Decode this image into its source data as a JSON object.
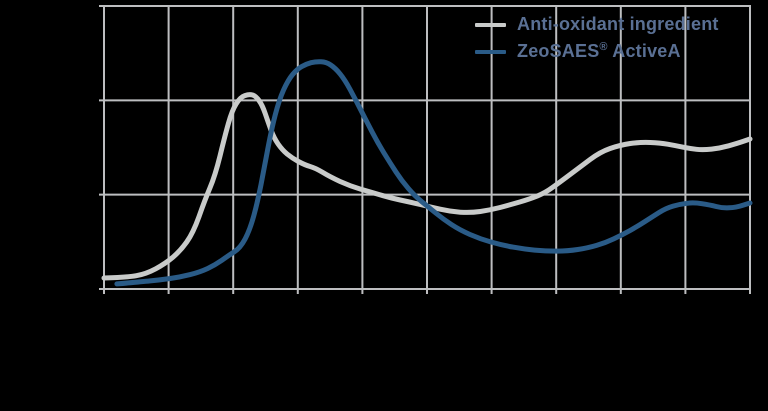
{
  "colors": {
    "background": "#000000",
    "grid": "#bdbec0",
    "series_gray": "#c9cbca",
    "series_blue": "#2a5b87",
    "legend_text": "#5a7094"
  },
  "legend": {
    "items": [
      {
        "label": "Anti-oxidant ingredient",
        "color": "#c9cbca"
      },
      {
        "label": "ZeoSAES® ActiveA",
        "color": "#2a5b87",
        "label_parts": {
          "name": "ZeoSAES",
          "reg": "®",
          "rest": " ActiveA"
        }
      }
    ]
  },
  "chart_data": {
    "type": "line",
    "title": "",
    "xlabel": "",
    "ylabel": "",
    "axes_labeled": false,
    "grid": true,
    "legend_position": "top-right",
    "x_axis": {
      "columns": 10,
      "unit": "grid-columns",
      "range": [
        0,
        10
      ],
      "tick_labels": []
    },
    "y_axis": {
      "rows": 3,
      "unit": "percent-of-plot-height",
      "range": [
        0,
        100
      ],
      "tick_labels": []
    },
    "series": [
      {
        "name": "Anti-oxidant ingredient",
        "color": "#c9cbca",
        "line_width": 5,
        "points": [
          [
            0,
            3.9
          ],
          [
            0.35,
            4.1
          ],
          [
            0.65,
            5.3
          ],
          [
            0.95,
            9.0
          ],
          [
            1.18,
            13.4
          ],
          [
            1.38,
            19.8
          ],
          [
            1.56,
            31.4
          ],
          [
            1.72,
            40.0
          ],
          [
            1.87,
            54.0
          ],
          [
            1.98,
            63.0
          ],
          [
            2.11,
            67.8
          ],
          [
            2.25,
            68.9
          ],
          [
            2.35,
            68.2
          ],
          [
            2.45,
            65.0
          ],
          [
            2.54,
            59.0
          ],
          [
            2.63,
            53.4
          ],
          [
            2.76,
            49.1
          ],
          [
            2.91,
            46.3
          ],
          [
            3.11,
            43.8
          ],
          [
            3.27,
            42.8
          ],
          [
            3.5,
            39.6
          ],
          [
            3.81,
            36.4
          ],
          [
            4.12,
            34.3
          ],
          [
            4.43,
            32.2
          ],
          [
            4.74,
            30.7
          ],
          [
            5.05,
            29.0
          ],
          [
            5.36,
            27.4
          ],
          [
            5.67,
            26.9
          ],
          [
            5.98,
            27.9
          ],
          [
            6.28,
            29.7
          ],
          [
            6.59,
            31.8
          ],
          [
            6.83,
            34.0
          ],
          [
            7.06,
            37.8
          ],
          [
            7.37,
            43.1
          ],
          [
            7.68,
            48.4
          ],
          [
            7.99,
            50.9
          ],
          [
            8.3,
            51.9
          ],
          [
            8.61,
            51.6
          ],
          [
            8.84,
            50.7
          ],
          [
            9.07,
            49.6
          ],
          [
            9.27,
            49.1
          ],
          [
            9.54,
            49.8
          ],
          [
            9.8,
            51.4
          ],
          [
            10,
            53.0
          ]
        ]
      },
      {
        "name": "ZeoSAES® ActiveA",
        "color": "#2a5b87",
        "line_width": 5,
        "points": [
          [
            0.2,
            1.8
          ],
          [
            0.56,
            2.5
          ],
          [
            0.87,
            3.2
          ],
          [
            1.18,
            4.2
          ],
          [
            1.49,
            6.0
          ],
          [
            1.72,
            8.5
          ],
          [
            1.92,
            11.7
          ],
          [
            2.11,
            14.5
          ],
          [
            2.26,
            21.0
          ],
          [
            2.38,
            31.0
          ],
          [
            2.48,
            42.8
          ],
          [
            2.59,
            56.2
          ],
          [
            2.71,
            66.8
          ],
          [
            2.85,
            73.9
          ],
          [
            2.99,
            77.7
          ],
          [
            3.13,
            79.5
          ],
          [
            3.28,
            80.4
          ],
          [
            3.44,
            80.2
          ],
          [
            3.58,
            78.1
          ],
          [
            3.73,
            73.9
          ],
          [
            3.89,
            67.1
          ],
          [
            4.06,
            59.4
          ],
          [
            4.24,
            51.6
          ],
          [
            4.43,
            44.5
          ],
          [
            4.61,
            38.2
          ],
          [
            4.81,
            32.9
          ],
          [
            5.02,
            29.0
          ],
          [
            5.25,
            24.7
          ],
          [
            5.51,
            20.8
          ],
          [
            5.82,
            17.7
          ],
          [
            6.16,
            15.5
          ],
          [
            6.5,
            14.1
          ],
          [
            6.83,
            13.4
          ],
          [
            7.18,
            13.4
          ],
          [
            7.49,
            14.5
          ],
          [
            7.76,
            16.3
          ],
          [
            8.02,
            19.1
          ],
          [
            8.27,
            22.3
          ],
          [
            8.48,
            25.4
          ],
          [
            8.7,
            28.6
          ],
          [
            8.92,
            30.0
          ],
          [
            9.13,
            30.6
          ],
          [
            9.38,
            29.7
          ],
          [
            9.57,
            28.6
          ],
          [
            9.78,
            28.8
          ],
          [
            10,
            30.4
          ]
        ]
      }
    ]
  }
}
